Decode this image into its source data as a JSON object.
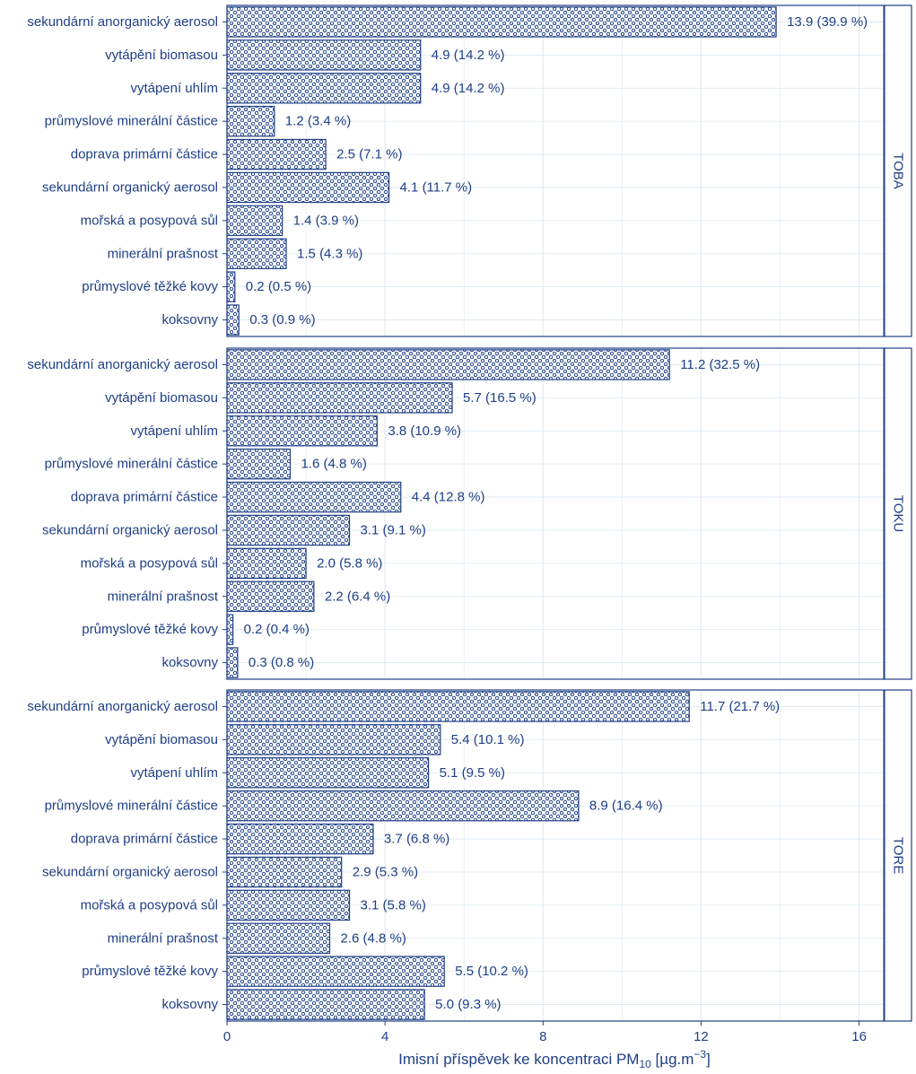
{
  "colors": {
    "accent": "#1f3f86",
    "grid": "#dbe8f0",
    "background": "#ffffff"
  },
  "chart_data": {
    "type": "bar",
    "orientation": "horizontal",
    "faceted": true,
    "grid": true,
    "xlim": [
      0,
      16.6
    ],
    "x_ticks": [
      0,
      4,
      8,
      12,
      16
    ],
    "x_tick_labels": [
      "0",
      "4",
      "8",
      "12",
      "16"
    ],
    "xlabel": {
      "prefix": "Imisní příspěvek ke koncentraci  PM",
      "subscript": "10",
      "unit_prefix": "  [µg.m",
      "superscript": "−3",
      "unit_suffix": "]"
    },
    "categories": [
      "sekundární anorganický aerosol",
      "vytápění biomasou",
      "vytápení uhlím",
      "průmyslové minerální částice",
      "doprava  primární částice",
      "sekundární organický aerosol",
      "mořská a posypová sůl",
      "minerální prašnost",
      "průmyslové těžké kovy",
      "koksovny"
    ],
    "panels": [
      {
        "name": "TOBA",
        "values": [
          13.9,
          4.9,
          4.9,
          1.2,
          2.5,
          4.1,
          1.4,
          1.5,
          0.2,
          0.3
        ],
        "labels": [
          "13.9 (39.9 %)",
          "4.9 (14.2 %)",
          "4.9 (14.2 %)",
          "1.2 (3.4 %)",
          "2.5 (7.1 %)",
          "4.1 (11.7 %)",
          "1.4 (3.9 %)",
          "1.5 (4.3 %)",
          "0.2 (0.5 %)",
          "0.3 (0.9 %)"
        ]
      },
      {
        "name": "TOKU",
        "values": [
          11.2,
          5.7,
          3.8,
          1.6,
          4.4,
          3.1,
          2.0,
          2.2,
          0.15,
          0.27
        ],
        "labels": [
          "11.2 (32.5 %)",
          "5.7 (16.5 %)",
          "3.8 (10.9 %)",
          "1.6 (4.8 %)",
          "4.4 (12.8 %)",
          "3.1 (9.1 %)",
          "2.0 (5.8 %)",
          "2.2 (6.4 %)",
          "0.2 (0.4 %)",
          "0.3 (0.8 %)"
        ]
      },
      {
        "name": "TORE",
        "values": [
          11.7,
          5.4,
          5.1,
          8.9,
          3.7,
          2.9,
          3.1,
          2.6,
          5.5,
          5.0
        ],
        "labels": [
          "11.7 (21.7 %)",
          "5.4 (10.1 %)",
          "5.1 (9.5 %)",
          "8.9 (16.4 %)",
          "3.7 (6.8 %)",
          "2.9 (5.3 %)",
          "3.1 (5.8 %)",
          "2.6 (4.8 %)",
          "5.5 (10.2 %)",
          "5.0 (9.3 %)"
        ]
      }
    ]
  }
}
